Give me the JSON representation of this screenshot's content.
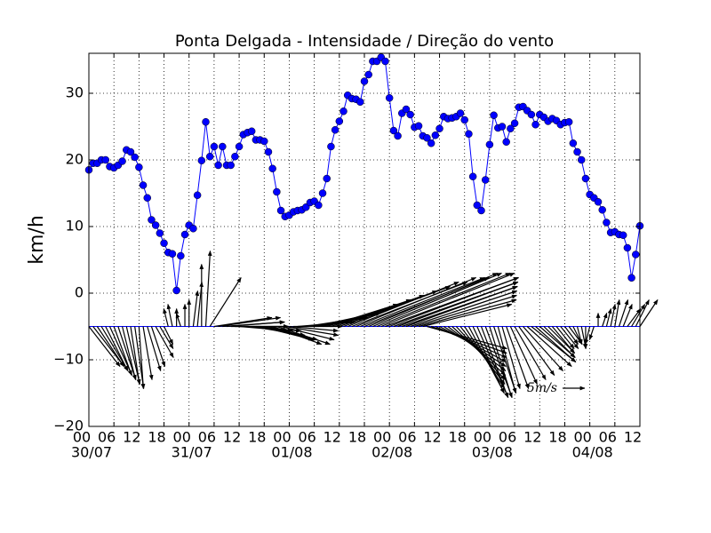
{
  "chart_data": {
    "type": "line_quiver",
    "title": "Ponta Delgada - Intensidade / Direção do vento",
    "ylabel": "km/h",
    "color": "#0000ff",
    "arrow_color": "#000000",
    "grid": true,
    "x": [
      0,
      1,
      2,
      3,
      4,
      5,
      6,
      7,
      8,
      9,
      10,
      11,
      12,
      13,
      14,
      15,
      16,
      17,
      18,
      19,
      20,
      21,
      22,
      23,
      24,
      25,
      26,
      27,
      28,
      29,
      30,
      31,
      32,
      33,
      34,
      35,
      36,
      37,
      38,
      39,
      40,
      41,
      42,
      43,
      44,
      45,
      46,
      47,
      48,
      49,
      50,
      51,
      52,
      53,
      54,
      55,
      56,
      57,
      58,
      59,
      60,
      61,
      62,
      63,
      64,
      65,
      66,
      67,
      68,
      69,
      70,
      71,
      72,
      73,
      74,
      75,
      76,
      77,
      78,
      79,
      80,
      81,
      82,
      83,
      84,
      85,
      86,
      87,
      88,
      89,
      90,
      91,
      92,
      93,
      94,
      95,
      96,
      97,
      98,
      99,
      100,
      101,
      102,
      103,
      104,
      105,
      106,
      107,
      108,
      109,
      110,
      111,
      112,
      113,
      114,
      115,
      116,
      117,
      118,
      119,
      120,
      121,
      122,
      123,
      124,
      125,
      126,
      127,
      128,
      129,
      130,
      131,
      132
    ],
    "values": [
      18.5,
      19.5,
      19.5,
      20,
      20,
      19,
      18.8,
      19.2,
      19.8,
      21.5,
      21.2,
      20.4,
      18.9,
      16.2,
      14.3,
      11,
      10.2,
      9,
      7.5,
      6.1,
      5.9,
      0.4,
      5.6,
      8.8,
      10.2,
      9.7,
      14.7,
      19.9,
      25.7,
      20.5,
      22,
      19.2,
      22,
      19.2,
      19.2,
      20.5,
      22,
      23.8,
      24.1,
      24.3,
      23,
      23,
      22.8,
      21.2,
      18.7,
      15.2,
      12.4,
      11.5,
      11.7,
      12.2,
      12.4,
      12.5,
      12.9,
      13.6,
      13.8,
      13.2,
      15,
      17.2,
      22,
      24.5,
      25.8,
      27.3,
      29.7,
      29.2,
      29.1,
      28.7,
      31.8,
      32.8,
      34.8,
      34.8,
      35.4,
      34.8,
      29.3,
      24.4,
      23.6,
      27,
      27.6,
      26.8,
      24.9,
      25.1,
      23.6,
      23.3,
      22.5,
      23.7,
      24.7,
      26.5,
      26.2,
      26.3,
      26.5,
      27,
      26,
      23.9,
      17.5,
      13.2,
      12.4,
      17,
      22.3,
      26.7,
      24.8,
      25,
      22.7,
      24.7,
      25.5,
      27.9,
      28,
      27.4,
      26.8,
      25.3,
      26.8,
      26.4,
      25.8,
      26.2,
      25.9,
      25.3,
      25.6,
      25.7,
      22.5,
      21.2,
      20,
      17.2,
      14.8,
      14.3,
      13.7,
      12.5,
      10.6,
      9.1,
      9.2,
      8.8,
      8.7,
      6.8,
      2.3,
      5.8,
      10.1
    ],
    "arrows": {
      "baseline": -5,
      "u": [
        7,
        7,
        6,
        6,
        5,
        5,
        4,
        4,
        3,
        3,
        2,
        2,
        1,
        2,
        3,
        3,
        4,
        3,
        2,
        -1,
        -1,
        0,
        -1,
        0,
        0,
        1,
        1,
        0,
        1,
        7,
        13,
        14,
        14,
        13,
        13,
        12,
        12,
        13,
        12,
        12,
        11,
        12,
        12,
        11,
        11,
        12,
        12,
        12,
        11,
        11,
        12,
        12,
        13,
        13,
        14,
        14,
        15,
        16,
        18,
        20,
        22,
        24,
        25,
        26,
        27,
        28,
        28,
        29,
        29,
        30,
        30,
        30,
        29,
        28,
        27,
        26,
        25,
        24,
        23,
        22,
        20,
        18,
        17,
        16,
        15,
        14,
        13,
        12,
        11,
        10,
        9,
        8,
        7,
        7,
        6,
        6,
        5,
        5,
        4,
        4,
        5,
        6,
        7,
        8,
        9,
        10,
        10,
        9,
        8,
        7,
        6,
        5,
        4,
        4,
        3,
        3,
        2,
        1,
        1,
        0,
        -1,
        -1,
        0,
        1,
        1,
        1,
        1,
        2,
        2,
        3,
        3,
        3,
        4
      ],
      "v": [
        -9,
        -9,
        -9,
        -10,
        -10,
        -11,
        -11,
        -12,
        -12,
        -13,
        -13,
        -14,
        -14,
        -12,
        -10,
        -9,
        -7,
        -5,
        -4,
        4,
        5,
        4,
        3,
        5,
        6,
        8,
        10,
        14,
        17,
        11,
        2,
        2,
        1,
        1,
        0,
        0,
        -1,
        -1,
        -1,
        -2,
        -2,
        -3,
        -3,
        -3,
        -4,
        -4,
        -3,
        -2,
        -1,
        0,
        1,
        1,
        2,
        2,
        3,
        3,
        4,
        5,
        6,
        7,
        8,
        9,
        10,
        10,
        11,
        11,
        11,
        12,
        12,
        12,
        12,
        11,
        11,
        10,
        10,
        9,
        9,
        8,
        7,
        6,
        5,
        -5,
        -6,
        -7,
        -8,
        -9,
        -10,
        -11,
        -12,
        -13,
        -14,
        -15,
        -15,
        -16,
        -16,
        -16,
        -16,
        -15,
        -15,
        -14,
        -14,
        -13,
        -12,
        -11,
        -10,
        -9,
        -8,
        -8,
        -7,
        -7,
        -6,
        -6,
        -5,
        -5,
        -4,
        -4,
        -4,
        -4,
        -5,
        -5,
        -4,
        -3,
        3,
        3,
        4,
        5,
        6,
        6,
        5,
        4,
        5,
        6,
        6
      ]
    },
    "arrow_key": {
      "value": 5,
      "label": "5m/s"
    },
    "xlim": [
      0,
      132
    ],
    "ylim": [
      -20,
      36
    ],
    "xticks": [
      {
        "value": 0,
        "label": "00"
      },
      {
        "value": 6,
        "label": "06"
      },
      {
        "value": 12,
        "label": "12"
      },
      {
        "value": 18,
        "label": "18"
      },
      {
        "value": 24,
        "label": "00"
      },
      {
        "value": 30,
        "label": "06"
      },
      {
        "value": 36,
        "label": "12"
      },
      {
        "value": 42,
        "label": "18"
      },
      {
        "value": 48,
        "label": "00"
      },
      {
        "value": 54,
        "label": "06"
      },
      {
        "value": 60,
        "label": "12"
      },
      {
        "value": 66,
        "label": "18"
      },
      {
        "value": 72,
        "label": "00"
      },
      {
        "value": 78,
        "label": "06"
      },
      {
        "value": 84,
        "label": "12"
      },
      {
        "value": 90,
        "label": "18"
      },
      {
        "value": 96,
        "label": "00"
      },
      {
        "value": 102,
        "label": "06"
      },
      {
        "value": 108,
        "label": "12"
      },
      {
        "value": 114,
        "label": "18"
      },
      {
        "value": 120,
        "label": "00"
      },
      {
        "value": 126,
        "label": "06"
      },
      {
        "value": 132,
        "label": "12"
      }
    ],
    "x_day_labels": [
      {
        "value": 0,
        "label": "30/07"
      },
      {
        "value": 24,
        "label": "31/07"
      },
      {
        "value": 48,
        "label": "01/08"
      },
      {
        "value": 72,
        "label": "02/08"
      },
      {
        "value": 96,
        "label": "03/08"
      },
      {
        "value": 120,
        "label": "04/08"
      }
    ],
    "yticks": [
      {
        "value": -20,
        "label": "−20"
      },
      {
        "value": -10,
        "label": "−10"
      },
      0,
      10,
      20,
      30
    ]
  }
}
